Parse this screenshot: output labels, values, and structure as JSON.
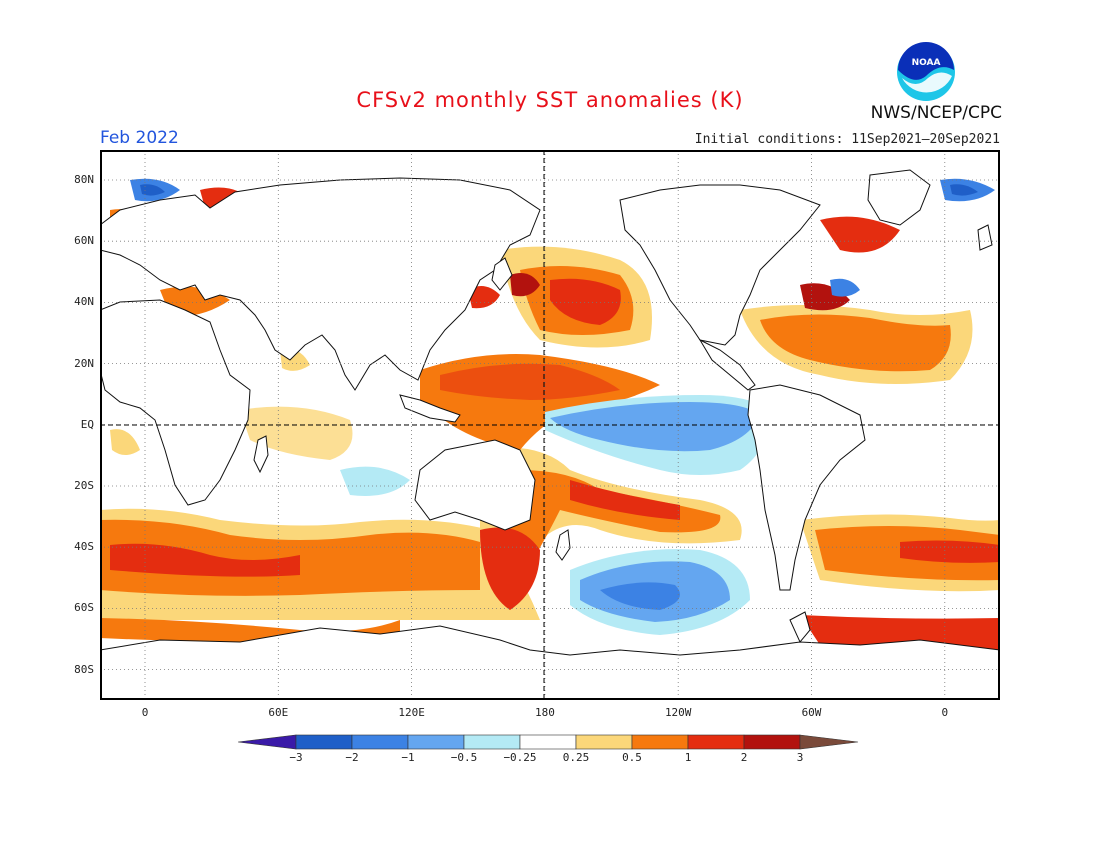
{
  "header": {
    "title": "CFSv2 monthly SST anomalies (K)",
    "period": "Feb 2022",
    "initial_conditions": "Initial conditions: 11Sep2021–20Sep2021",
    "agency": "NWS/NCEP/CPC",
    "logo_text": "NOAA"
  },
  "map": {
    "projection": "equirectangular",
    "lat_labels": [
      "80N",
      "60N",
      "40N",
      "20N",
      "EQ",
      "20S",
      "40S",
      "60S",
      "80S"
    ],
    "lon_labels": [
      "0",
      "60E",
      "120E",
      "180",
      "120W",
      "60W",
      "0"
    ],
    "grid": "dotted",
    "reference_lines": [
      "EQ",
      "180"
    ]
  },
  "colorbar": {
    "labels": [
      "−3",
      "−2",
      "−1",
      "−0.5",
      "−0.25",
      "0.25",
      "0.5",
      "1",
      "2",
      "3"
    ],
    "colors": [
      "#3a1aa8",
      "#1f5fc8",
      "#3c82e4",
      "#64a6f0",
      "#b4eaf5",
      "#ffffff",
      "#fbd77a",
      "#f6790e",
      "#e42d10",
      "#b2120e",
      "#7a4a3a"
    ]
  }
}
